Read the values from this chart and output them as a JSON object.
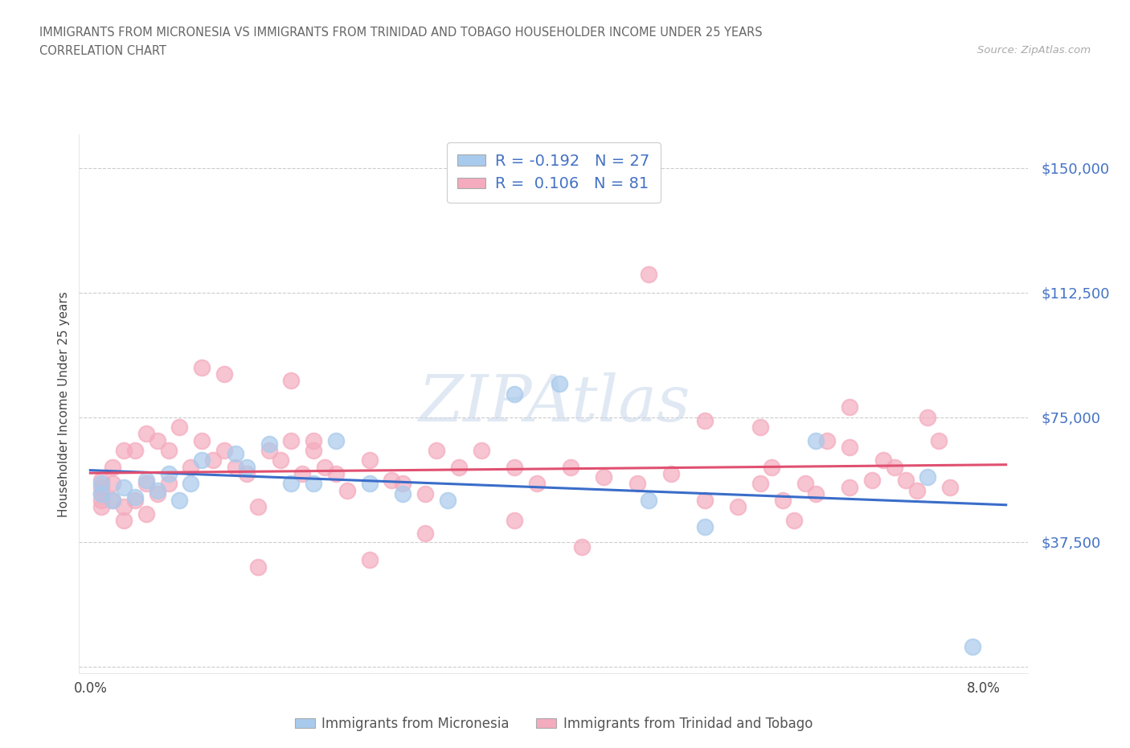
{
  "title_line1": "IMMIGRANTS FROM MICRONESIA VS IMMIGRANTS FROM TRINIDAD AND TOBAGO HOUSEHOLDER INCOME UNDER 25 YEARS",
  "title_line2": "CORRELATION CHART",
  "source": "Source: ZipAtlas.com",
  "ylabel": "Householder Income Under 25 years",
  "xlim": [
    -0.001,
    0.084
  ],
  "ylim": [
    -2000,
    160000
  ],
  "yticks": [
    0,
    37500,
    75000,
    112500,
    150000
  ],
  "ytick_labels": [
    "",
    "$37,500",
    "$75,000",
    "$112,500",
    "$150,000"
  ],
  "xtick_positions": [
    0.0,
    0.08
  ],
  "xtick_labels": [
    "0.0%",
    "8.0%"
  ],
  "blue_scatter_color": "#A8CAEC",
  "pink_scatter_color": "#F4ABBE",
  "blue_line_color": "#3A6DC9",
  "pink_line_color": "#E05070",
  "axis_label_color": "#4472C4",
  "title_color": "#666666",
  "grid_color": "#CCCCCC",
  "legend_r_blue": "-0.192",
  "legend_n_blue": "27",
  "legend_r_pink": "0.106",
  "legend_n_pink": "81",
  "legend_label_blue": "Immigrants from Micronesia",
  "legend_label_pink": "Immigrants from Trinidad and Tobago",
  "watermark": "ZIPAtlas",
  "blue_scatter_x": [
    0.001,
    0.001,
    0.002,
    0.003,
    0.004,
    0.005,
    0.006,
    0.007,
    0.008,
    0.009,
    0.01,
    0.013,
    0.014,
    0.016,
    0.018,
    0.02,
    0.022,
    0.025,
    0.028,
    0.032,
    0.038,
    0.042,
    0.05,
    0.055,
    0.065,
    0.075,
    0.079
  ],
  "blue_scatter_y": [
    55000,
    52000,
    50000,
    54000,
    51000,
    56000,
    53000,
    58000,
    50000,
    55000,
    62000,
    64000,
    60000,
    67000,
    55000,
    55000,
    68000,
    55000,
    52000,
    50000,
    82000,
    85000,
    50000,
    42000,
    68000,
    57000,
    6000
  ],
  "pink_scatter_x": [
    0.001,
    0.001,
    0.001,
    0.001,
    0.001,
    0.002,
    0.002,
    0.002,
    0.003,
    0.003,
    0.003,
    0.004,
    0.004,
    0.005,
    0.005,
    0.005,
    0.006,
    0.006,
    0.007,
    0.007,
    0.008,
    0.009,
    0.01,
    0.011,
    0.012,
    0.013,
    0.014,
    0.015,
    0.016,
    0.017,
    0.018,
    0.019,
    0.02,
    0.021,
    0.022,
    0.023,
    0.025,
    0.027,
    0.028,
    0.03,
    0.031,
    0.033,
    0.035,
    0.038,
    0.04,
    0.043,
    0.046,
    0.049,
    0.05,
    0.052,
    0.055,
    0.055,
    0.058,
    0.06,
    0.061,
    0.062,
    0.063,
    0.064,
    0.065,
    0.066,
    0.068,
    0.068,
    0.07,
    0.071,
    0.072,
    0.073,
    0.074,
    0.075,
    0.076,
    0.077,
    0.01,
    0.012,
    0.015,
    0.018,
    0.02,
    0.025,
    0.03,
    0.038,
    0.044,
    0.06,
    0.068
  ],
  "pink_scatter_y": [
    56000,
    54000,
    52000,
    50000,
    48000,
    60000,
    55000,
    50000,
    65000,
    48000,
    44000,
    65000,
    50000,
    70000,
    55000,
    46000,
    68000,
    52000,
    65000,
    55000,
    72000,
    60000,
    68000,
    62000,
    65000,
    60000,
    58000,
    48000,
    65000,
    62000,
    68000,
    58000,
    65000,
    60000,
    58000,
    53000,
    62000,
    56000,
    55000,
    52000,
    65000,
    60000,
    65000,
    60000,
    55000,
    60000,
    57000,
    55000,
    118000,
    58000,
    50000,
    74000,
    48000,
    55000,
    60000,
    50000,
    44000,
    55000,
    52000,
    68000,
    78000,
    54000,
    56000,
    62000,
    60000,
    56000,
    53000,
    75000,
    68000,
    54000,
    90000,
    88000,
    30000,
    86000,
    68000,
    32000,
    40000,
    44000,
    36000,
    72000,
    66000
  ]
}
